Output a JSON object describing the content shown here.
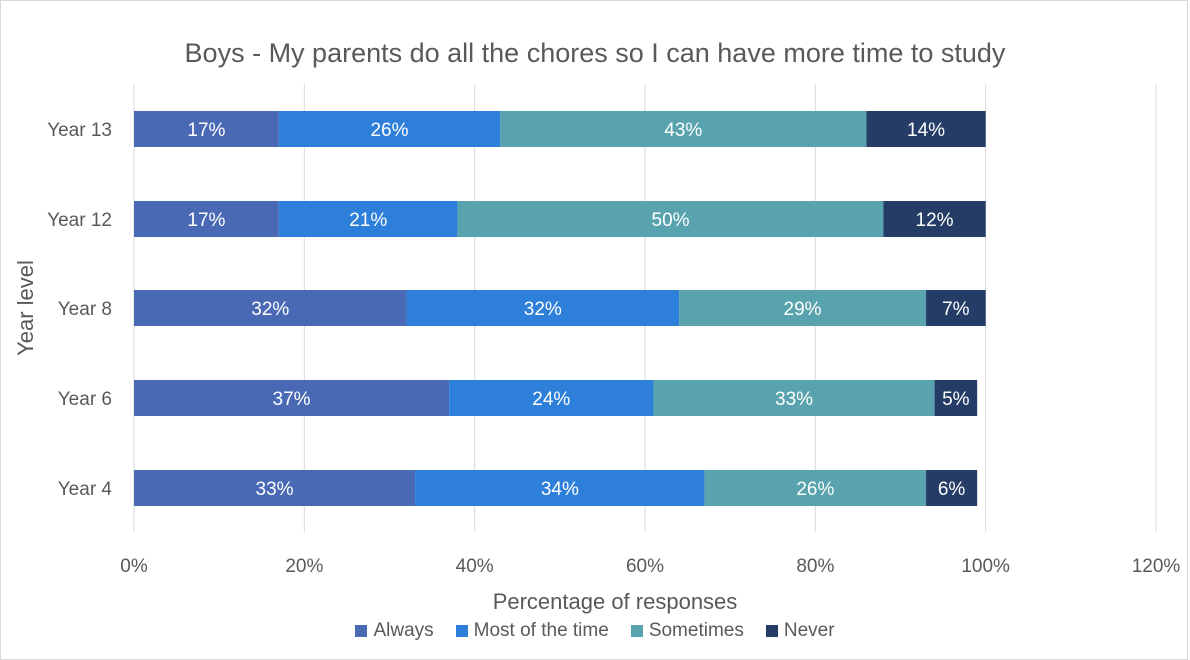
{
  "chart_data": {
    "type": "bar",
    "orientation": "horizontal",
    "stacked": true,
    "title": "Boys - My parents do all the chores so I can have more time to study",
    "xlabel": "Percentage of responses",
    "ylabel": "Year level",
    "xlim": [
      0,
      120
    ],
    "x_ticks": [
      "0%",
      "20%",
      "40%",
      "60%",
      "80%",
      "100%",
      "120%"
    ],
    "grid": "vertical",
    "legend_position": "bottom",
    "categories": [
      "Year 13",
      "Year 12",
      "Year 8",
      "Year 6",
      "Year 4"
    ],
    "series": [
      {
        "name": "Always",
        "color": "#4a69b4",
        "values": [
          17,
          17,
          32,
          37,
          33
        ],
        "labels": [
          "17%",
          "17%",
          "32%",
          "37%",
          "33%"
        ]
      },
      {
        "name": "Most of the time",
        "color": "#2e7fda",
        "values": [
          26,
          21,
          32,
          24,
          34
        ],
        "labels": [
          "26%",
          "21%",
          "32%",
          "24%",
          "34%"
        ]
      },
      {
        "name": "Sometimes",
        "color": "#58a3ad",
        "values": [
          43,
          50,
          29,
          33,
          26
        ],
        "labels": [
          "43%",
          "50%",
          "29%",
          "33%",
          "26%"
        ]
      },
      {
        "name": "Never",
        "color": "#253d66",
        "values": [
          14,
          12,
          7,
          5,
          6
        ],
        "labels": [
          "14%",
          "12%",
          "7%",
          "5%",
          "6%"
        ]
      }
    ]
  }
}
